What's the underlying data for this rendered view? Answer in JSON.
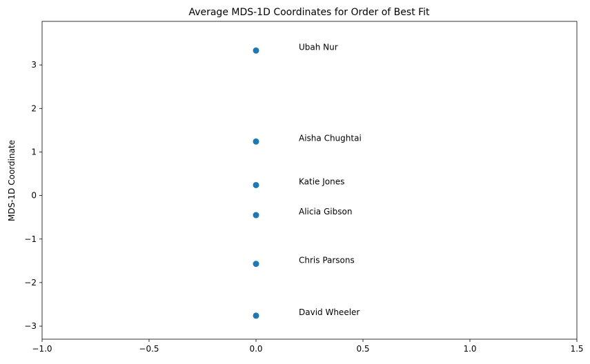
{
  "chart_data": {
    "type": "scatter",
    "title": "Average MDS-1D Coordinates for Order of Best Fit",
    "xlabel": "",
    "ylabel": "MDS-1D Coordinate",
    "xlim": [
      -1.0,
      1.5
    ],
    "ylim": [
      -3.3,
      4.0
    ],
    "xticks": [
      -1.0,
      -0.5,
      0.0,
      0.5,
      1.0,
      1.5
    ],
    "xtick_labels": [
      "−1.0",
      "−0.5",
      "0.0",
      "0.5",
      "1.0",
      "1.5"
    ],
    "yticks": [
      -3,
      -2,
      -1,
      0,
      1,
      2,
      3
    ],
    "ytick_labels": [
      "−3",
      "−2",
      "−1",
      "0",
      "1",
      "2",
      "3"
    ],
    "grid": false,
    "marker_color": "#1f77b4",
    "label_offset_x": 0.2,
    "points": [
      {
        "x": 0.0,
        "y": 3.33,
        "label": "Ubah Nur"
      },
      {
        "x": 0.0,
        "y": 1.24,
        "label": "Aisha Chughtai"
      },
      {
        "x": 0.0,
        "y": 0.24,
        "label": "Katie Jones"
      },
      {
        "x": 0.0,
        "y": -0.45,
        "label": "Alicia Gibson"
      },
      {
        "x": 0.0,
        "y": -1.57,
        "label": "Chris Parsons"
      },
      {
        "x": 0.0,
        "y": -2.76,
        "label": "David Wheeler"
      }
    ]
  }
}
